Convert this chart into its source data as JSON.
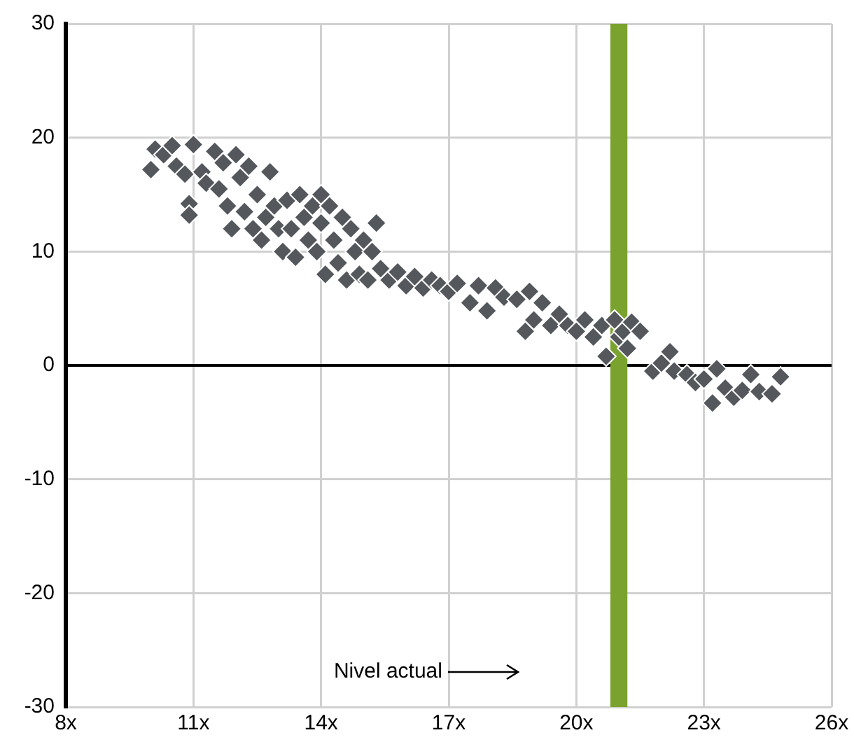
{
  "chart_data": {
    "type": "scatter",
    "xlim": [
      8,
      26
    ],
    "xticks": [
      {
        "value": 8,
        "label": "8x"
      },
      {
        "value": 11,
        "label": "11x"
      },
      {
        "value": 14,
        "label": "14x"
      },
      {
        "value": 17,
        "label": "17x"
      },
      {
        "value": 20,
        "label": "20x"
      },
      {
        "value": 23,
        "label": "23x"
      },
      {
        "value": 26,
        "label": "26x"
      }
    ],
    "ylim": [
      -30,
      30
    ],
    "yticks": [
      -30,
      -20,
      -10,
      0,
      10,
      20,
      30
    ],
    "grid": true,
    "marker": "diamond",
    "series": [
      {
        "color": "#54585c",
        "x": [
          10.0,
          10.1,
          10.3,
          10.5,
          10.6,
          10.8,
          10.9,
          10.9,
          11.0,
          11.2,
          11.3,
          11.5,
          11.6,
          11.7,
          11.8,
          11.9,
          12.0,
          12.1,
          12.2,
          12.3,
          12.4,
          12.5,
          12.6,
          12.7,
          12.8,
          12.9,
          13.0,
          13.1,
          13.2,
          13.3,
          13.4,
          13.5,
          13.6,
          13.7,
          13.8,
          13.9,
          14.0,
          14.0,
          14.1,
          14.2,
          14.3,
          14.4,
          14.5,
          14.6,
          14.7,
          14.8,
          14.9,
          15.0,
          15.1,
          15.2,
          15.3,
          15.4,
          15.6,
          15.8,
          16.0,
          16.2,
          16.4,
          16.6,
          16.8,
          17.0,
          17.2,
          17.5,
          17.7,
          17.9,
          18.1,
          18.3,
          18.6,
          18.8,
          18.9,
          19.0,
          19.2,
          19.4,
          19.6,
          19.8,
          20.0,
          20.2,
          20.4,
          20.6,
          20.7,
          20.9,
          21.0,
          21.1,
          21.2,
          21.3,
          21.5,
          21.8,
          22.0,
          22.2,
          22.3,
          22.6,
          22.8,
          23.0,
          23.2,
          23.3,
          23.5,
          23.7,
          23.9,
          24.1,
          24.3,
          24.6,
          24.8
        ],
        "values": [
          17.2,
          19,
          18.5,
          19.3,
          17.5,
          16.8,
          14.2,
          13.2,
          19.4,
          17,
          16,
          18.8,
          15.5,
          17.8,
          14,
          12,
          18.5,
          16.5,
          13.5,
          17.5,
          12,
          15,
          11,
          13,
          17,
          14,
          12,
          10,
          14.5,
          12,
          9.5,
          15,
          13,
          11,
          14,
          10,
          15,
          12.5,
          8,
          14,
          11,
          9,
          13,
          7.5,
          12,
          10,
          8,
          11,
          7.5,
          10,
          12.5,
          8.5,
          7.5,
          8.2,
          7,
          7.8,
          6.8,
          7.5,
          7,
          6.5,
          7.2,
          5.5,
          7,
          4.8,
          6.8,
          6,
          5.8,
          3,
          6.5,
          4,
          5.5,
          3.5,
          4.5,
          3.5,
          3,
          4,
          2.5,
          3.5,
          0.8,
          4,
          2.5,
          3,
          1.5,
          3.8,
          3,
          -0.5,
          0.2,
          1.2,
          -0.5,
          -0.8,
          -1.5,
          -1.2,
          -3.3,
          -0.3,
          -2,
          -2.8,
          -2.2,
          -0.8,
          -2.3,
          -2.5,
          -1
        ]
      }
    ],
    "bands": [
      {
        "axis": "x",
        "from": 20.8,
        "to": 21.2,
        "color": "#7aa22f"
      }
    ],
    "annotations": [
      "Nivel actual"
    ]
  }
}
